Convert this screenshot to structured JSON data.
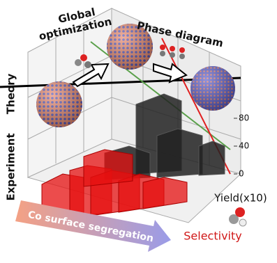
{
  "labels": {
    "global": "Global",
    "optimization": "optimization",
    "phase_diagram": "Phase diagram",
    "theory": "Theory",
    "experiment": "Experiment",
    "yield": "Yield(x10)",
    "selectivity": "Selectivity",
    "co_segregation": "Co surface segregation"
  },
  "z_axis": {
    "ticks": [
      80,
      40,
      0
    ]
  }
}
